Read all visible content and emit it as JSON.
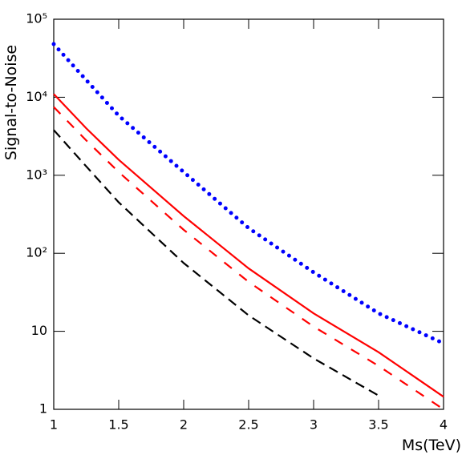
{
  "chart_data": {
    "type": "line",
    "x": [
      1,
      1.25,
      1.5,
      2,
      2.5,
      3,
      3.5,
      4
    ],
    "series": [
      {
        "color": "#0000ff",
        "style": "dotted",
        "values": [
          48000,
          16600,
          5800,
          1100,
          210,
          57,
          17,
          7
        ]
      },
      {
        "color": "#ff0000",
        "style": "solid",
        "values": [
          11000,
          4000,
          1580,
          300,
          64,
          17,
          5.4,
          1.45
        ]
      },
      {
        "color": "#ff0000",
        "style": "dashdot",
        "values": [
          7500,
          2800,
          1100,
          200,
          43,
          11.5,
          3.6,
          1.0
        ]
      },
      {
        "color": "#000000",
        "style": "dashed",
        "values": [
          3800,
          1300,
          450,
          75,
          16,
          4.5,
          1.5,
          null
        ]
      }
    ],
    "xlabel": "Ms(TeV)",
    "ylabel": "Signal-to-Noise",
    "xlim": [
      1,
      4
    ],
    "xticks": [
      1,
      1.5,
      2,
      2.5,
      3,
      3.5,
      4
    ],
    "ylim": [
      1,
      100000
    ],
    "ylog": true,
    "yticks": [
      1,
      10,
      {
        "value": 100,
        "label": "10²"
      },
      {
        "value": 1000,
        "label": "10³"
      },
      {
        "value": 10000,
        "label": "10⁴"
      },
      {
        "value": 100000,
        "label": "10⁵"
      }
    ]
  }
}
